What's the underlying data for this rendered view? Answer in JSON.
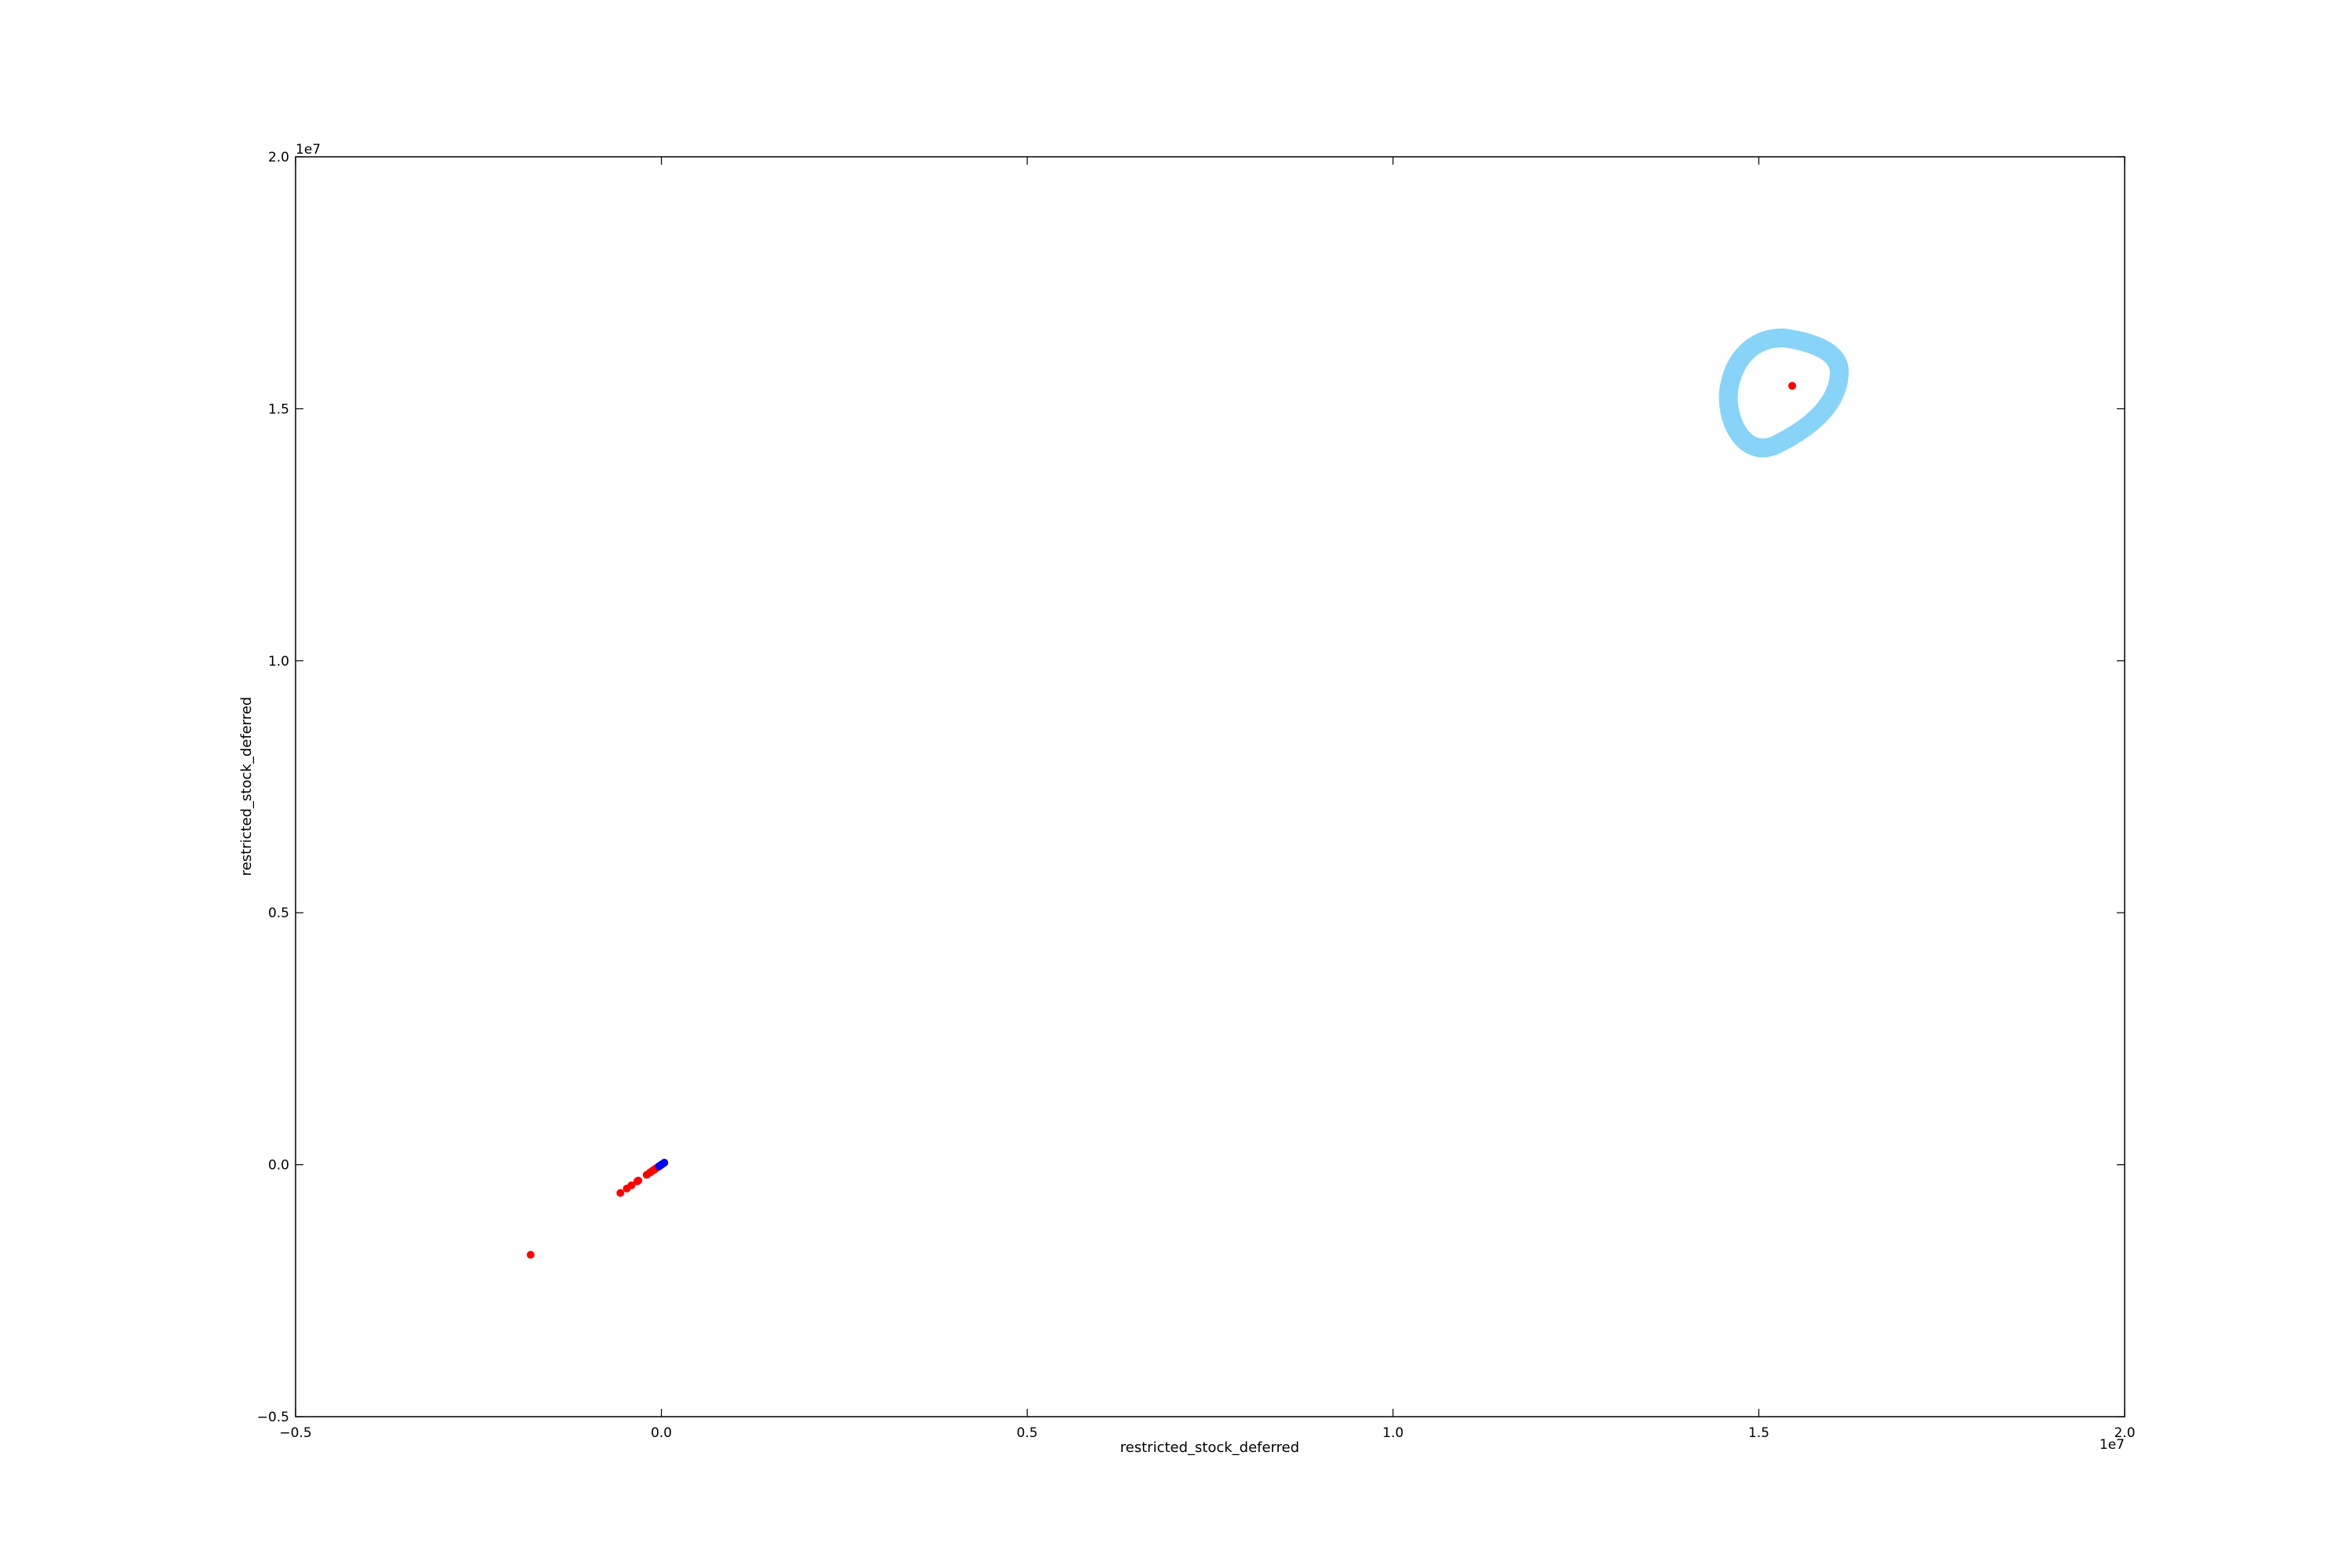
{
  "chart_data": {
    "type": "scatter",
    "title": "",
    "xlabel": "restricted_stock_deferred",
    "ylabel": "restricted_stock_deferred",
    "x_offset_label": "1e7",
    "y_offset_label": "1e7",
    "xlim": [
      -5000000,
      20000000
    ],
    "ylim": [
      -5000000,
      20000000
    ],
    "x_ticks": [
      -5000000,
      0,
      5000000,
      10000000,
      15000000,
      20000000
    ],
    "x_tick_labels": [
      "−0.5",
      "0.0",
      "0.5",
      "1.0",
      "1.5",
      "2.0"
    ],
    "y_ticks": [
      -5000000,
      0,
      5000000,
      10000000,
      15000000,
      20000000
    ],
    "y_tick_labels": [
      "−0.5",
      "0.0",
      "0.5",
      "1.0",
      "1.5",
      "2.0"
    ],
    "grid": false,
    "legend": "none",
    "series": [
      {
        "color": "#ff0000",
        "marker": "circle",
        "points": [
          [
            -1787380,
            -1787380
          ],
          [
            -560222,
            -560222
          ],
          [
            -472568,
            -472568
          ],
          [
            -409554,
            -409554
          ],
          [
            -329825,
            -329825
          ],
          [
            -315068,
            -315068
          ],
          [
            -201641,
            -201641
          ],
          [
            -159890,
            -159890
          ],
          [
            -146592,
            -146592
          ],
          [
            -128985,
            -128985
          ],
          [
            -119375,
            -119375
          ],
          [
            -94556,
            -94556
          ],
          [
            -82782,
            -82782
          ],
          [
            -72419,
            -72419
          ],
          [
            -44093,
            -44093
          ],
          [
            -25000,
            -25000
          ],
          [
            -15000,
            -15000
          ],
          [
            15456290,
            15456290
          ]
        ]
      },
      {
        "color": "#0000ff",
        "marker": "circle",
        "points": [
          [
            -32000,
            -32000
          ],
          [
            -5000,
            -5000
          ],
          [
            10000,
            10000
          ],
          [
            40000,
            40000
          ]
        ]
      }
    ],
    "annotations": [
      {
        "type": "highlight-ring",
        "color": "#87d4f8",
        "target": [
          15456290,
          15456290
        ]
      }
    ]
  }
}
